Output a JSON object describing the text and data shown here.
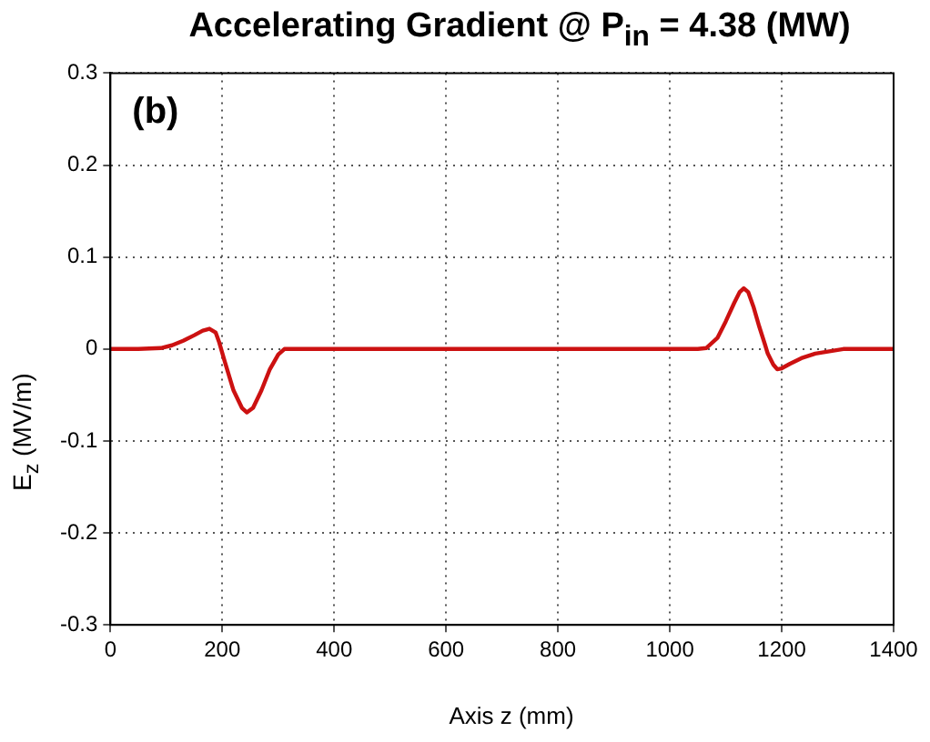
{
  "chart_data": {
    "type": "line",
    "title": "Accelerating Gradient  @  P$_{in}$ = 4.38 (MW)",
    "xlabel": "Axis z   (mm)",
    "ylabel": "E$_{z}$   (MV/m)",
    "annotations": [
      "(b)"
    ],
    "x": [
      0,
      50,
      90,
      110,
      130,
      150,
      165,
      177,
      188,
      194,
      205,
      220,
      235,
      244,
      255,
      270,
      285,
      300,
      311,
      350,
      400,
      500,
      600,
      700,
      800,
      900,
      1000,
      1050,
      1065,
      1085,
      1100,
      1115,
      1125,
      1132,
      1140,
      1150,
      1160,
      1170,
      1175,
      1185,
      1192,
      1200,
      1215,
      1235,
      1260,
      1290,
      1310,
      1350,
      1400
    ],
    "series": [
      {
        "color": "#cc1111",
        "values": [
          0,
          0,
          0.001,
          0.004,
          0.009,
          0.015,
          0.02,
          0.022,
          0.018,
          0.008,
          -0.015,
          -0.045,
          -0.064,
          -0.069,
          -0.064,
          -0.045,
          -0.022,
          -0.006,
          0,
          0,
          0,
          0,
          0,
          0,
          0,
          0,
          0,
          0,
          0.001,
          0.012,
          0.03,
          0.05,
          0.062,
          0.066,
          0.062,
          0.045,
          0.024,
          0.005,
          -0.005,
          -0.017,
          -0.022,
          -0.021,
          -0.016,
          -0.01,
          -0.005,
          -0.002,
          0,
          0,
          0
        ]
      }
    ],
    "xlim": [
      0,
      1400
    ],
    "xticks": [
      0,
      200,
      400,
      600,
      800,
      1000,
      1200,
      1400
    ],
    "ylim": [
      -0.3,
      0.3
    ],
    "yticks": [
      -0.3,
      -0.2,
      -0.1,
      0,
      0.1,
      0.2,
      0.3
    ],
    "grid": true,
    "marker": "none",
    "line_style": "solid",
    "legend": false
  }
}
